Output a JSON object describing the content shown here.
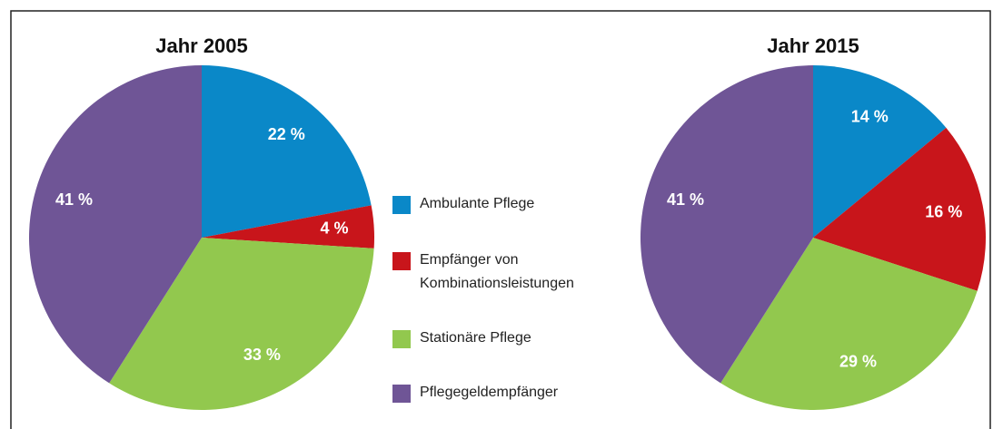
{
  "legend": {
    "categories": [
      "Ambulante Pflege",
      "Empfänger von Kombinationsleistungen",
      "Stationäre Pflege",
      "Pflegegeldempfänger"
    ],
    "colors": [
      "#0a88c8",
      "#c8151b",
      "#92c84e",
      "#6f5596"
    ]
  },
  "chart_data": [
    {
      "type": "pie",
      "title": "Jahr 2005",
      "values": [
        22,
        4,
        33,
        41
      ],
      "value_labels": [
        "22 %",
        "4 %",
        "33 %",
        "41 %"
      ]
    },
    {
      "type": "pie",
      "title": "Jahr 2015",
      "values": [
        14,
        16,
        29,
        41
      ],
      "value_labels": [
        "14 %",
        "16 %",
        "29 %",
        "41 %"
      ]
    }
  ]
}
